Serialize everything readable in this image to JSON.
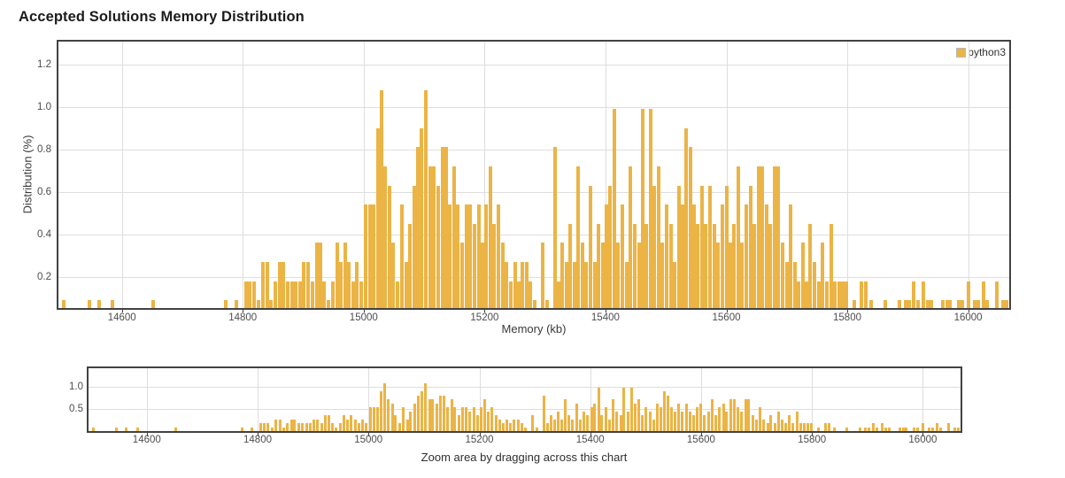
{
  "page": {
    "title": "Accepted Solutions Memory Distribution"
  },
  "colors": {
    "bar": "#EBB445",
    "axis_border": "#424242",
    "gridline": "#DEDEDE",
    "tick_text": "#4D4D4D",
    "title_text": "#1C1C1E"
  },
  "chart_data": {
    "type": "bar",
    "title": "Accepted Solutions Memory Distribution",
    "xlabel": "Memory (kb)",
    "ylabel": "Distribution (%)",
    "nav_caption": "Zoom area by dragging across this chart",
    "legend": {
      "label": "python3",
      "position": "top-right"
    },
    "grid": true,
    "x_ticks": [
      14600,
      14800,
      15000,
      15200,
      15400,
      15600,
      15800,
      16000
    ],
    "y_ticks_main": [
      0.2,
      0.4,
      0.6,
      0.8,
      1.0,
      1.2
    ],
    "y_ticks_nav": [
      0.5,
      1.0
    ],
    "x_range": [
      14495,
      16068
    ],
    "y_range_main": [
      0.053,
      1.31
    ],
    "y_range_nav": [
      0,
      1.42
    ],
    "unit_pct": 0.09,
    "series": [
      {
        "name": "python3",
        "color": "#EBB445",
        "points": [
          [
            14504,
            0.09
          ],
          [
            14546,
            0.09
          ],
          [
            14563,
            0.09
          ],
          [
            14584,
            0.09
          ],
          [
            14652,
            0.09
          ],
          [
            14772,
            0.09
          ],
          [
            14790,
            0.09
          ],
          [
            14806,
            0.18
          ],
          [
            14812,
            0.18
          ],
          [
            14819,
            0.18
          ],
          [
            14826,
            0.09
          ],
          [
            14833,
            0.27
          ],
          [
            14840,
            0.27
          ],
          [
            14847,
            0.09
          ],
          [
            14854,
            0.18
          ],
          [
            14861,
            0.27
          ],
          [
            14867,
            0.27
          ],
          [
            14874,
            0.18
          ],
          [
            14881,
            0.18
          ],
          [
            14888,
            0.18
          ],
          [
            14895,
            0.18
          ],
          [
            14901,
            0.27
          ],
          [
            14908,
            0.27
          ],
          [
            14915,
            0.18
          ],
          [
            14922,
            0.36
          ],
          [
            14929,
            0.36
          ],
          [
            14935,
            0.18
          ],
          [
            14942,
            0.09
          ],
          [
            14949,
            0.18
          ],
          [
            14956,
            0.36
          ],
          [
            14962,
            0.27
          ],
          [
            14969,
            0.36
          ],
          [
            14976,
            0.27
          ],
          [
            14983,
            0.18
          ],
          [
            14989,
            0.27
          ],
          [
            14996,
            0.18
          ],
          [
            15003,
            0.54
          ],
          [
            15010,
            0.54
          ],
          [
            15016,
            0.54
          ],
          [
            15023,
            0.9
          ],
          [
            15029,
            1.08
          ],
          [
            15036,
            0.72
          ],
          [
            15043,
            0.63
          ],
          [
            15049,
            0.36
          ],
          [
            15056,
            0.18
          ],
          [
            15063,
            0.54
          ],
          [
            15070,
            0.27
          ],
          [
            15076,
            0.45
          ],
          [
            15083,
            0.63
          ],
          [
            15090,
            0.81
          ],
          [
            15096,
            0.9
          ],
          [
            15103,
            1.08
          ],
          [
            15110,
            0.72
          ],
          [
            15116,
            0.72
          ],
          [
            15123,
            0.63
          ],
          [
            15130,
            0.81
          ],
          [
            15136,
            0.81
          ],
          [
            15143,
            0.54
          ],
          [
            15150,
            0.72
          ],
          [
            15156,
            0.54
          ],
          [
            15163,
            0.36
          ],
          [
            15170,
            0.54
          ],
          [
            15176,
            0.54
          ],
          [
            15183,
            0.45
          ],
          [
            15190,
            0.54
          ],
          [
            15196,
            0.36
          ],
          [
            15203,
            0.54
          ],
          [
            15210,
            0.72
          ],
          [
            15216,
            0.45
          ],
          [
            15223,
            0.54
          ],
          [
            15230,
            0.36
          ],
          [
            15236,
            0.27
          ],
          [
            15243,
            0.18
          ],
          [
            15250,
            0.27
          ],
          [
            15256,
            0.18
          ],
          [
            15263,
            0.27
          ],
          [
            15270,
            0.27
          ],
          [
            15276,
            0.18
          ],
          [
            15283,
            0.09
          ],
          [
            15296,
            0.36
          ],
          [
            15304,
            0.09
          ],
          [
            15317,
            0.81
          ],
          [
            15323,
            0.18
          ],
          [
            15329,
            0.36
          ],
          [
            15336,
            0.27
          ],
          [
            15342,
            0.45
          ],
          [
            15349,
            0.27
          ],
          [
            15355,
            0.72
          ],
          [
            15362,
            0.36
          ],
          [
            15368,
            0.27
          ],
          [
            15375,
            0.63
          ],
          [
            15382,
            0.27
          ],
          [
            15388,
            0.45
          ],
          [
            15395,
            0.36
          ],
          [
            15402,
            0.54
          ],
          [
            15408,
            0.63
          ],
          [
            15415,
            0.99
          ],
          [
            15421,
            0.36
          ],
          [
            15428,
            0.54
          ],
          [
            15435,
            0.27
          ],
          [
            15441,
            0.72
          ],
          [
            15448,
            0.45
          ],
          [
            15455,
            0.36
          ],
          [
            15461,
            0.99
          ],
          [
            15468,
            0.45
          ],
          [
            15475,
            0.99
          ],
          [
            15481,
            0.63
          ],
          [
            15488,
            0.72
          ],
          [
            15494,
            0.36
          ],
          [
            15501,
            0.54
          ],
          [
            15508,
            0.45
          ],
          [
            15514,
            0.27
          ],
          [
            15521,
            0.63
          ],
          [
            15527,
            0.54
          ],
          [
            15534,
            0.9
          ],
          [
            15540,
            0.81
          ],
          [
            15547,
            0.54
          ],
          [
            15553,
            0.45
          ],
          [
            15560,
            0.63
          ],
          [
            15566,
            0.45
          ],
          [
            15573,
            0.63
          ],
          [
            15580,
            0.45
          ],
          [
            15586,
            0.36
          ],
          [
            15593,
            0.54
          ],
          [
            15600,
            0.63
          ],
          [
            15606,
            0.36
          ],
          [
            15613,
            0.45
          ],
          [
            15620,
            0.72
          ],
          [
            15626,
            0.36
          ],
          [
            15633,
            0.54
          ],
          [
            15640,
            0.63
          ],
          [
            15646,
            0.45
          ],
          [
            15653,
            0.72
          ],
          [
            15660,
            0.72
          ],
          [
            15666,
            0.54
          ],
          [
            15673,
            0.45
          ],
          [
            15680,
            0.72
          ],
          [
            15686,
            0.72
          ],
          [
            15693,
            0.36
          ],
          [
            15700,
            0.27
          ],
          [
            15706,
            0.54
          ],
          [
            15713,
            0.27
          ],
          [
            15720,
            0.18
          ],
          [
            15726,
            0.36
          ],
          [
            15733,
            0.18
          ],
          [
            15739,
            0.45
          ],
          [
            15746,
            0.27
          ],
          [
            15753,
            0.18
          ],
          [
            15759,
            0.36
          ],
          [
            15766,
            0.18
          ],
          [
            15773,
            0.45
          ],
          [
            15779,
            0.18
          ],
          [
            15786,
            0.18
          ],
          [
            15792,
            0.18
          ],
          [
            15799,
            0.18
          ],
          [
            15812,
            0.09
          ],
          [
            15824,
            0.18
          ],
          [
            15831,
            0.18
          ],
          [
            15840,
            0.09
          ],
          [
            15863,
            0.09
          ],
          [
            15887,
            0.09
          ],
          [
            15896,
            0.09
          ],
          [
            15903,
            0.09
          ],
          [
            15910,
            0.18
          ],
          [
            15917,
            0.09
          ],
          [
            15926,
            0.18
          ],
          [
            15933,
            0.09
          ],
          [
            15939,
            0.09
          ],
          [
            15958,
            0.09
          ],
          [
            15965,
            0.09
          ],
          [
            15970,
            0.09
          ],
          [
            15984,
            0.09
          ],
          [
            15991,
            0.09
          ],
          [
            16000,
            0.18
          ],
          [
            16011,
            0.09
          ],
          [
            16017,
            0.09
          ],
          [
            16025,
            0.18
          ],
          [
            16032,
            0.09
          ],
          [
            16047,
            0.18
          ],
          [
            16057,
            0.09
          ],
          [
            16064,
            0.09
          ]
        ]
      }
    ]
  }
}
